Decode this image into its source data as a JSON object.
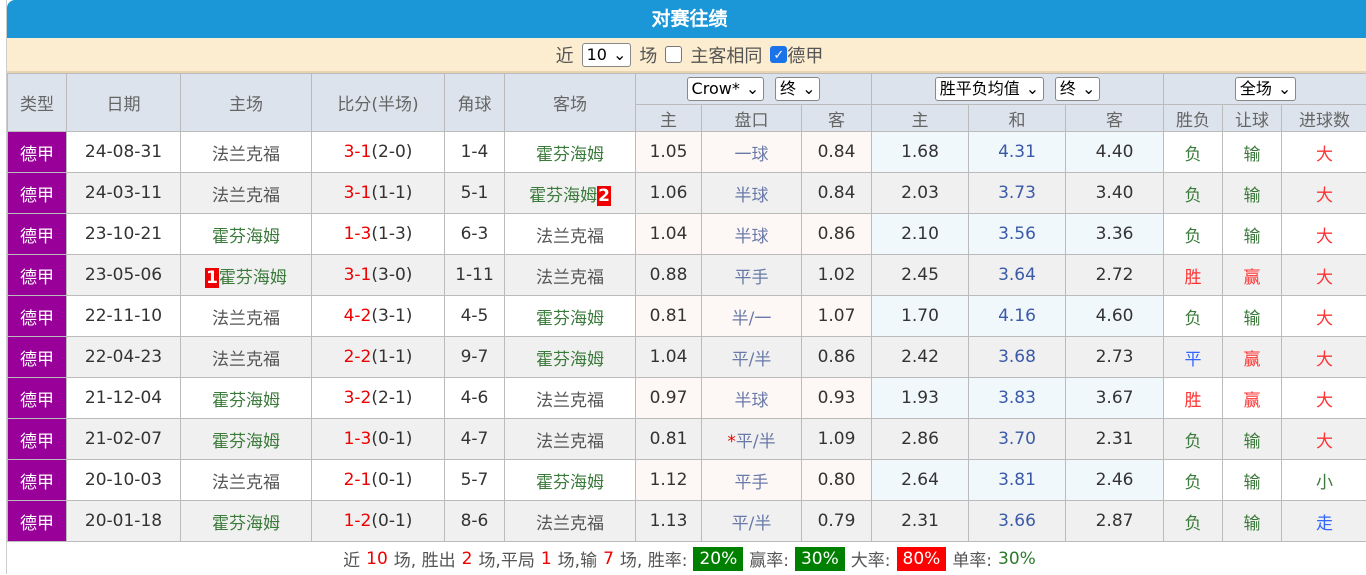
{
  "title": "对赛往绩",
  "filter": {
    "near": "近",
    "count": "10",
    "unit": "场",
    "same_label": "主客相同",
    "same_checked": false,
    "league_label": "德甲",
    "league_checked": true
  },
  "headers": {
    "type": "类型",
    "date": "日期",
    "home": "主场",
    "score": "比分(半场)",
    "corner": "角球",
    "away": "客场",
    "company": "Crow*",
    "final1": "终",
    "avg": "胜平负均值",
    "final2": "终",
    "scope": "全场",
    "h_home": "主",
    "h_line": "盘口",
    "h_away": "客",
    "e_home": "主",
    "e_draw": "和",
    "e_away": "客",
    "wl": "胜负",
    "hcp": "让球",
    "ou": "进球数"
  },
  "colors": {
    "league": "#990099",
    "header": "#1b96d6",
    "win": "#ff3333",
    "lose": "#3a7a3a",
    "draw": "#3366ff"
  },
  "rows": [
    {
      "league": "德甲",
      "date": "24-08-31",
      "home": "法兰克福",
      "home_rank": "",
      "score": "3-1",
      "half": "(2-0)",
      "corner": "1-4",
      "away": "霍芬海姆",
      "away_rank": "",
      "ah": "1.05",
      "line": "一球",
      "aa": "0.84",
      "eh": "1.68",
      "ed": "4.31",
      "ea": "4.40",
      "wl": "负",
      "hc": "输",
      "ou": "大"
    },
    {
      "league": "德甲",
      "date": "24-03-11",
      "home": "法兰克福",
      "home_rank": "",
      "score": "3-1",
      "half": "(1-1)",
      "corner": "5-1",
      "away": "霍芬海姆",
      "away_rank": "2",
      "ah": "1.06",
      "line": "半球",
      "aa": "0.84",
      "eh": "2.03",
      "ed": "3.73",
      "ea": "3.40",
      "wl": "负",
      "hc": "输",
      "ou": "大"
    },
    {
      "league": "德甲",
      "date": "23-10-21",
      "home": "霍芬海姆",
      "home_rank": "",
      "score": "1-3",
      "half": "(1-3)",
      "corner": "6-3",
      "away": "法兰克福",
      "away_rank": "",
      "ah": "1.04",
      "line": "半球",
      "aa": "0.86",
      "eh": "2.10",
      "ed": "3.56",
      "ea": "3.36",
      "wl": "负",
      "hc": "输",
      "ou": "大"
    },
    {
      "league": "德甲",
      "date": "23-05-06",
      "home": "霍芬海姆",
      "home_rank": "1",
      "score": "3-1",
      "half": "(3-0)",
      "corner": "1-11",
      "away": "法兰克福",
      "away_rank": "",
      "ah": "0.88",
      "line": "平手",
      "aa": "1.02",
      "eh": "2.45",
      "ed": "3.64",
      "ea": "2.72",
      "wl": "胜",
      "hc": "赢",
      "ou": "大"
    },
    {
      "league": "德甲",
      "date": "22-11-10",
      "home": "法兰克福",
      "home_rank": "",
      "score": "4-2",
      "half": "(3-1)",
      "corner": "4-5",
      "away": "霍芬海姆",
      "away_rank": "",
      "ah": "0.81",
      "line": "半/一",
      "aa": "1.07",
      "eh": "1.70",
      "ed": "4.16",
      "ea": "4.60",
      "wl": "负",
      "hc": "输",
      "ou": "大"
    },
    {
      "league": "德甲",
      "date": "22-04-23",
      "home": "法兰克福",
      "home_rank": "",
      "score": "2-2",
      "half": "(1-1)",
      "corner": "9-7",
      "away": "霍芬海姆",
      "away_rank": "",
      "ah": "1.04",
      "line": "平/半",
      "aa": "0.86",
      "eh": "2.42",
      "ed": "3.68",
      "ea": "2.73",
      "wl": "平",
      "hc": "赢",
      "ou": "大"
    },
    {
      "league": "德甲",
      "date": "21-12-04",
      "home": "霍芬海姆",
      "home_rank": "",
      "score": "3-2",
      "half": "(2-1)",
      "corner": "4-6",
      "away": "法兰克福",
      "away_rank": "",
      "ah": "0.97",
      "line": "半球",
      "aa": "0.93",
      "eh": "1.93",
      "ed": "3.83",
      "ea": "3.67",
      "wl": "胜",
      "hc": "赢",
      "ou": "大"
    },
    {
      "league": "德甲",
      "date": "21-02-07",
      "home": "霍芬海姆",
      "home_rank": "",
      "score": "1-3",
      "half": "(0-1)",
      "corner": "4-7",
      "away": "法兰克福",
      "away_rank": "",
      "ah": "0.81",
      "line": "*平/半",
      "aa": "1.09",
      "eh": "2.86",
      "ed": "3.70",
      "ea": "2.31",
      "wl": "负",
      "hc": "输",
      "ou": "大"
    },
    {
      "league": "德甲",
      "date": "20-10-03",
      "home": "法兰克福",
      "home_rank": "",
      "score": "2-1",
      "half": "(0-1)",
      "corner": "5-7",
      "away": "霍芬海姆",
      "away_rank": "",
      "ah": "1.12",
      "line": "平手",
      "aa": "0.80",
      "eh": "2.64",
      "ed": "3.81",
      "ea": "2.46",
      "wl": "负",
      "hc": "输",
      "ou": "小"
    },
    {
      "league": "德甲",
      "date": "20-01-18",
      "home": "霍芬海姆",
      "home_rank": "",
      "score": "1-2",
      "half": "(0-1)",
      "corner": "8-6",
      "away": "法兰克福",
      "away_rank": "",
      "ah": "1.13",
      "line": "平/半",
      "aa": "0.79",
      "eh": "2.31",
      "ed": "3.66",
      "ea": "2.87",
      "wl": "负",
      "hc": "输",
      "ou": "走"
    }
  ],
  "summary": {
    "t1": "近",
    "n": "10",
    "t2": "场, 胜出",
    "w": "2",
    "t3": "场,平局",
    "d": "1",
    "t4": "场,输",
    "l": "7",
    "t5": "场, 胜率:",
    "win_rate": "20%",
    "t6": "赢率:",
    "hcp_rate": "30%",
    "t7": "大率:",
    "over_rate": "80%",
    "t8": "单率:",
    "odd_rate": "30%"
  }
}
